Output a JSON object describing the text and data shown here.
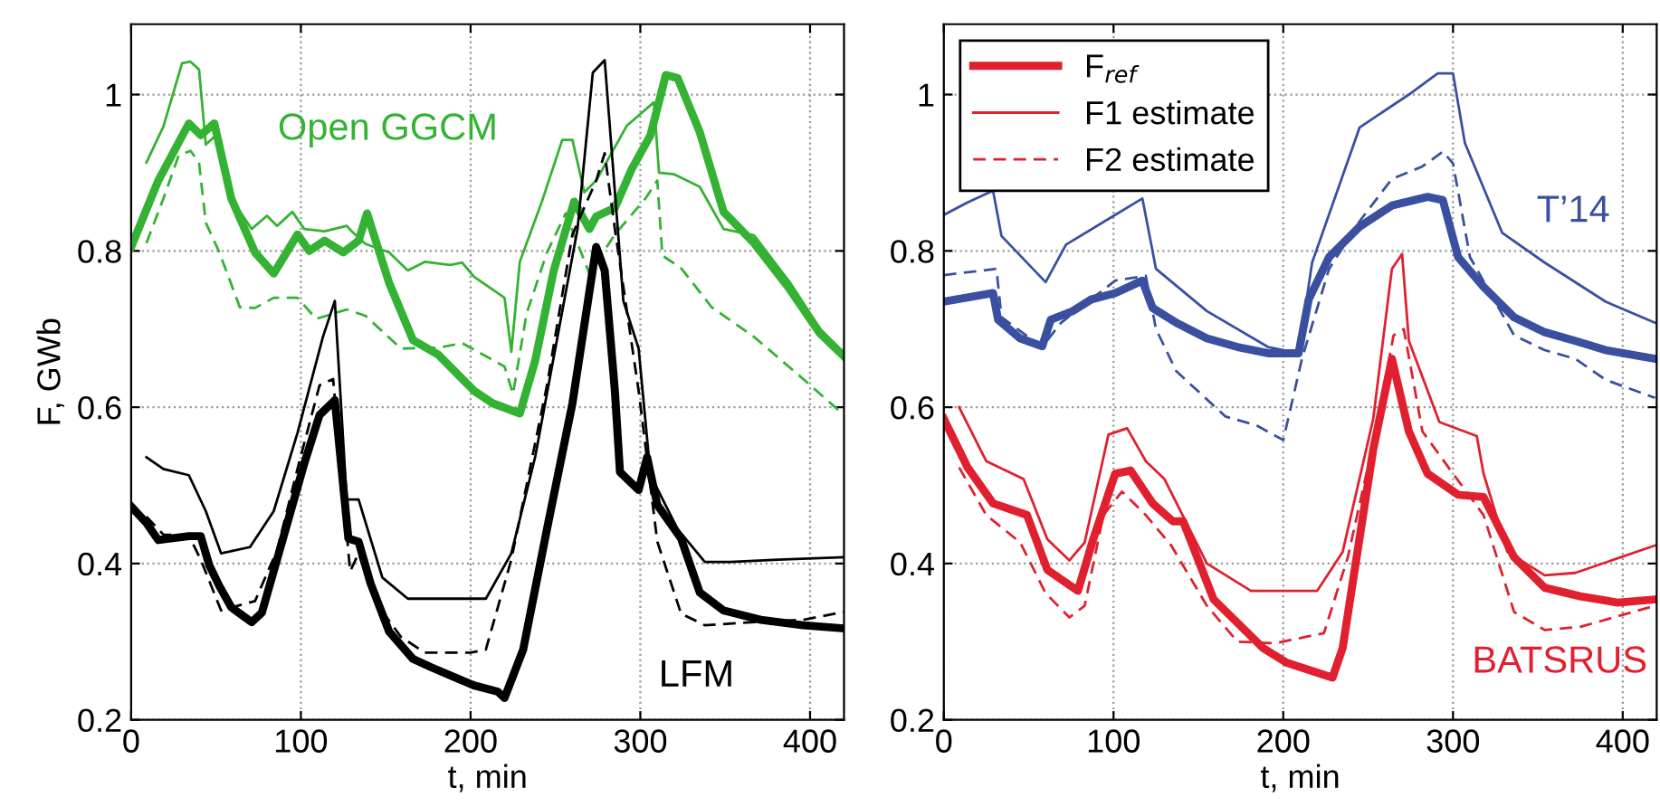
{
  "chart_data": [
    {
      "type": "line",
      "xlabel": "t, min",
      "ylabel": "F, GWb",
      "xlim": [
        0,
        420
      ],
      "xticks": [
        0,
        100,
        200,
        300,
        400
      ],
      "ylim": [
        0.2,
        1.09
      ],
      "yticks": [
        0.2,
        0.4,
        0.6,
        0.8,
        1
      ],
      "grid": true,
      "legend": false,
      "annotations": [
        "Open GGCM",
        "LFM"
      ],
      "series": [
        {
          "color": "#33b233",
          "line_style": "solid",
          "x": [
            0,
            16,
            34,
            41,
            49,
            59,
            73,
            84,
            98,
            105,
            114,
            125,
            134,
            139,
            152,
            166,
            181,
            202,
            213,
            229,
            238,
            249,
            261,
            270,
            274,
            285,
            295,
            306,
            315,
            322,
            335,
            349,
            367,
            388,
            406,
            420
          ],
          "values": [
            0.805,
            0.89,
            0.963,
            0.948,
            0.963,
            0.867,
            0.798,
            0.771,
            0.821,
            0.8,
            0.813,
            0.798,
            0.813,
            0.848,
            0.759,
            0.686,
            0.667,
            0.621,
            0.605,
            0.592,
            0.659,
            0.775,
            0.863,
            0.828,
            0.844,
            0.855,
            0.905,
            0.948,
            1.025,
            1.021,
            0.952,
            0.85,
            0.81,
            0.751,
            0.694,
            0.665
          ]
        },
        {
          "color": "#33b233",
          "line_style": "solid",
          "x": [
            9,
            19,
            30,
            35,
            40,
            44,
            50,
            59,
            71,
            80,
            86,
            95,
            102,
            114,
            127,
            130,
            138,
            152,
            163,
            173,
            188,
            195,
            202,
            220,
            224,
            229,
            242,
            254,
            260,
            267,
            274,
            292,
            308,
            311,
            320,
            335,
            349,
            367,
            388,
            406,
            420
          ],
          "values": [
            0.913,
            0.959,
            1.04,
            1.042,
            1.032,
            0.936,
            0.948,
            0.867,
            0.828,
            0.845,
            0.832,
            0.85,
            0.828,
            0.825,
            0.832,
            0.825,
            0.809,
            0.798,
            0.775,
            0.786,
            0.782,
            0.785,
            0.767,
            0.74,
            0.671,
            0.786,
            0.863,
            0.942,
            0.942,
            0.875,
            0.89,
            0.96,
            0.99,
            0.9,
            0.898,
            0.882,
            0.828,
            0.82,
            0.76,
            0.7,
            0.67
          ]
        },
        {
          "color": "#33b233",
          "line_style": "dashed",
          "x": [
            9,
            19,
            28,
            35,
            40,
            44,
            52,
            64,
            73,
            84,
            98,
            109,
            127,
            138,
            159,
            181,
            195,
            220,
            225,
            233,
            245,
            256,
            270,
            285,
            303,
            310,
            313,
            324,
            342,
            367,
            396,
            420
          ],
          "values": [
            0.81,
            0.867,
            0.922,
            0.928,
            0.913,
            0.836,
            0.798,
            0.728,
            0.727,
            0.74,
            0.74,
            0.713,
            0.725,
            0.717,
            0.675,
            0.676,
            0.682,
            0.652,
            0.617,
            0.72,
            0.798,
            0.848,
            0.771,
            0.821,
            0.867,
            0.89,
            0.794,
            0.778,
            0.728,
            0.69,
            0.636,
            0.59
          ]
        },
        {
          "color": "#000000",
          "line_style": "solid",
          "x": [
            0,
            9,
            16,
            34,
            41,
            46,
            52,
            59,
            71,
            77,
            87,
            102,
            111,
            120,
            128,
            134,
            141,
            152,
            166,
            177,
            202,
            216,
            220,
            231,
            245,
            260,
            274,
            279,
            285,
            288,
            299,
            304,
            310,
            324,
            335,
            349,
            371,
            396,
            420
          ],
          "values": [
            0.473,
            0.452,
            0.43,
            0.435,
            0.435,
            0.398,
            0.371,
            0.344,
            0.325,
            0.337,
            0.413,
            0.528,
            0.59,
            0.609,
            0.432,
            0.428,
            0.375,
            0.313,
            0.278,
            0.267,
            0.244,
            0.236,
            0.228,
            0.29,
            0.444,
            0.605,
            0.805,
            0.775,
            0.621,
            0.517,
            0.494,
            0.536,
            0.475,
            0.432,
            0.363,
            0.34,
            0.328,
            0.321,
            0.317
          ]
        },
        {
          "color": "#000000",
          "line_style": "solid",
          "x": [
            9,
            19,
            34,
            44,
            53,
            70,
            84,
            98,
            113,
            120,
            127,
            134,
            148,
            163,
            209,
            224,
            238,
            263,
            272,
            279,
            290,
            299,
            306,
            322,
            338,
            353,
            381,
            420
          ],
          "values": [
            0.536,
            0.521,
            0.513,
            0.467,
            0.413,
            0.421,
            0.467,
            0.567,
            0.69,
            0.736,
            0.482,
            0.482,
            0.382,
            0.355,
            0.355,
            0.413,
            0.536,
            0.828,
            1.028,
            1.044,
            0.736,
            0.675,
            0.513,
            0.444,
            0.402,
            0.402,
            0.405,
            0.408
          ]
        },
        {
          "color": "#000000",
          "line_style": "dashed",
          "x": [
            9,
            19,
            34,
            41,
            53,
            73,
            86,
            98,
            111,
            119,
            129,
            134,
            145,
            159,
            173,
            200,
            209,
            224,
            245,
            260,
            274,
            279,
            285,
            299,
            310,
            324,
            338,
            367,
            396,
            420
          ],
          "values": [
            0.46,
            0.437,
            0.436,
            0.405,
            0.34,
            0.352,
            0.417,
            0.521,
            0.628,
            0.636,
            0.39,
            0.413,
            0.348,
            0.306,
            0.286,
            0.286,
            0.29,
            0.405,
            0.628,
            0.821,
            0.89,
            0.925,
            0.828,
            0.621,
            0.428,
            0.336,
            0.321,
            0.325,
            0.328,
            0.338
          ]
        }
      ]
    },
    {
      "type": "line",
      "xlabel": "t, min",
      "xlim": [
        0,
        420
      ],
      "xticks": [
        0,
        100,
        200,
        300,
        400
      ],
      "ylim": [
        0.2,
        1.09
      ],
      "yticks": [
        0.2,
        0.4,
        0.6,
        0.8,
        1
      ],
      "grid": true,
      "legend": "top left",
      "annotations": [
        "T’14",
        "BATSRUS"
      ],
      "series": [
        {
          "color": "#3a4fa0",
          "line_style": "solid",
          "x": [
            0,
            29,
            32,
            45,
            58,
            63,
            76,
            87,
            101,
            117,
            123,
            137,
            155,
            173,
            191,
            209,
            215,
            227,
            245,
            264,
            285,
            294,
            303,
            318,
            336,
            354,
            372,
            390,
            419
          ],
          "values": [
            0.735,
            0.746,
            0.712,
            0.688,
            0.678,
            0.712,
            0.723,
            0.738,
            0.746,
            0.762,
            0.727,
            0.708,
            0.688,
            0.677,
            0.669,
            0.669,
            0.738,
            0.792,
            0.831,
            0.858,
            0.869,
            0.865,
            0.792,
            0.754,
            0.715,
            0.696,
            0.685,
            0.673,
            0.662
          ]
        },
        {
          "color": "#3a4fa0",
          "line_style": "solid",
          "x": [
            0,
            14,
            29,
            34,
            60,
            72,
            101,
            117,
            125,
            155,
            191,
            209,
            217,
            245,
            274,
            291,
            300,
            307,
            329,
            354,
            390,
            419
          ],
          "values": [
            0.846,
            0.862,
            0.877,
            0.819,
            0.76,
            0.808,
            0.846,
            0.867,
            0.777,
            0.723,
            0.677,
            0.669,
            0.785,
            0.958,
            1.0,
            1.027,
            1.027,
            0.938,
            0.823,
            0.785,
            0.735,
            0.708
          ]
        },
        {
          "color": "#3a4fa0",
          "line_style": "dashed",
          "x": [
            0,
            31,
            34,
            58,
            69,
            101,
            119,
            125,
            137,
            166,
            184,
            200,
            211,
            227,
            245,
            264,
            282,
            294,
            300,
            310,
            336,
            354,
            372,
            390,
            419
          ],
          "values": [
            0.769,
            0.777,
            0.715,
            0.677,
            0.708,
            0.762,
            0.768,
            0.7,
            0.646,
            0.588,
            0.577,
            0.558,
            0.662,
            0.777,
            0.838,
            0.892,
            0.908,
            0.927,
            0.912,
            0.792,
            0.692,
            0.673,
            0.662,
            0.635,
            0.612
          ]
        },
        {
          "name": "F$_{ref}$",
          "color": "#e0202f",
          "line_style": "solid",
          "x": [
            0,
            14,
            29,
            49,
            61,
            79,
            88,
            101,
            110,
            123,
            135,
            141,
            159,
            188,
            202,
            229,
            235,
            253,
            264,
            274,
            285,
            303,
            318,
            336,
            354,
            375,
            397,
            419
          ],
          "values": [
            0.585,
            0.523,
            0.477,
            0.462,
            0.392,
            0.365,
            0.431,
            0.515,
            0.519,
            0.477,
            0.454,
            0.454,
            0.354,
            0.292,
            0.273,
            0.254,
            0.292,
            0.546,
            0.662,
            0.569,
            0.515,
            0.488,
            0.485,
            0.408,
            0.369,
            0.358,
            0.35,
            0.354
          ]
        },
        {
          "name": "F1 estimate",
          "color": "#e0202f",
          "line_style": "solid",
          "x": [
            9,
            25,
            47,
            61,
            74,
            83,
            97,
            108,
            119,
            130,
            155,
            181,
            220,
            235,
            253,
            264,
            270,
            274,
            292,
            314,
            318,
            332,
            354,
            372,
            419
          ],
          "values": [
            0.6,
            0.531,
            0.508,
            0.431,
            0.404,
            0.427,
            0.565,
            0.573,
            0.531,
            0.508,
            0.4,
            0.365,
            0.365,
            0.415,
            0.585,
            0.777,
            0.796,
            0.685,
            0.581,
            0.563,
            0.515,
            0.415,
            0.385,
            0.388,
            0.423
          ]
        },
        {
          "name": "F2 estimate",
          "color": "#e0202f",
          "line_style": "dashed",
          "x": [
            9,
            25,
            45,
            60,
            74,
            83,
            94,
            105,
            119,
            134,
            155,
            173,
            195,
            224,
            238,
            253,
            265,
            271,
            282,
            300,
            318,
            336,
            354,
            375,
            419
          ],
          "values": [
            0.523,
            0.462,
            0.427,
            0.362,
            0.331,
            0.346,
            0.462,
            0.492,
            0.462,
            0.423,
            0.346,
            0.3,
            0.298,
            0.311,
            0.408,
            0.554,
            0.692,
            0.7,
            0.569,
            0.515,
            0.462,
            0.338,
            0.315,
            0.319,
            0.346
          ]
        }
      ]
    }
  ]
}
